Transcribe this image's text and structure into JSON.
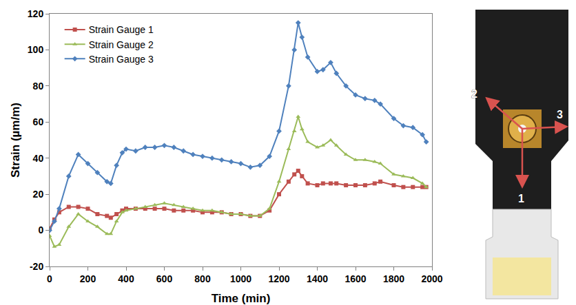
{
  "chart_data": {
    "type": "line",
    "x_label": "Time (min)",
    "y_label": "Strain (µm/m)",
    "x": [
      0,
      25,
      50,
      100,
      150,
      200,
      250,
      300,
      320,
      350,
      380,
      400,
      450,
      500,
      550,
      600,
      650,
      700,
      750,
      800,
      850,
      900,
      950,
      1000,
      1050,
      1100,
      1150,
      1200,
      1250,
      1280,
      1300,
      1320,
      1350,
      1400,
      1430,
      1470,
      1500,
      1550,
      1600,
      1650,
      1700,
      1730,
      1800,
      1850,
      1900,
      1950,
      1970
    ],
    "series": [
      {
        "name": "Strain Gauge 1",
        "color": "#c0504d",
        "marker": "square",
        "values": [
          1,
          6,
          10,
          13,
          13,
          12,
          9,
          8,
          7,
          9,
          11,
          12,
          12,
          12,
          12,
          12,
          11,
          11,
          11,
          10,
          10,
          10,
          9,
          9,
          8,
          8,
          11,
          20,
          27,
          31,
          33,
          30,
          26,
          25,
          26,
          26,
          26,
          25,
          25,
          25,
          26,
          27,
          25,
          24,
          24,
          24,
          24
        ]
      },
      {
        "name": "Strain Gauge 2",
        "color": "#9bbb59",
        "marker": "triangle",
        "values": [
          -3,
          -9,
          -8,
          2,
          9,
          5,
          2,
          -2,
          -2,
          5,
          10,
          11,
          12,
          13,
          14,
          15,
          14,
          13,
          12,
          11,
          11,
          10,
          9,
          9,
          8,
          8,
          12,
          27,
          45,
          55,
          63,
          56,
          49,
          46,
          47,
          50,
          47,
          42,
          39,
          39,
          38,
          37,
          31,
          30,
          29,
          26,
          24
        ]
      },
      {
        "name": "Strain Gauge 3",
        "color": "#4f81bd",
        "marker": "diamond",
        "values": [
          0,
          5,
          12,
          30,
          42,
          37,
          32,
          27,
          26,
          36,
          43,
          45,
          44,
          46,
          46,
          47,
          46,
          44,
          42,
          41,
          40,
          39,
          38,
          37,
          35,
          36,
          41,
          55,
          80,
          100,
          115,
          107,
          96,
          88,
          89,
          93,
          87,
          80,
          75,
          73,
          72,
          70,
          62,
          58,
          57,
          53,
          49
        ]
      }
    ],
    "xlim": [
      0,
      2000
    ],
    "xticks": [
      0,
      200,
      400,
      600,
      800,
      1000,
      1200,
      1400,
      1600,
      1800,
      2000
    ],
    "ylim": [
      -20,
      120
    ],
    "yticks": [
      -20,
      0,
      20,
      40,
      60,
      80,
      100,
      120
    ],
    "grid": false,
    "legend": "upper left"
  },
  "photo_labels": [
    "1",
    "2",
    "3"
  ]
}
